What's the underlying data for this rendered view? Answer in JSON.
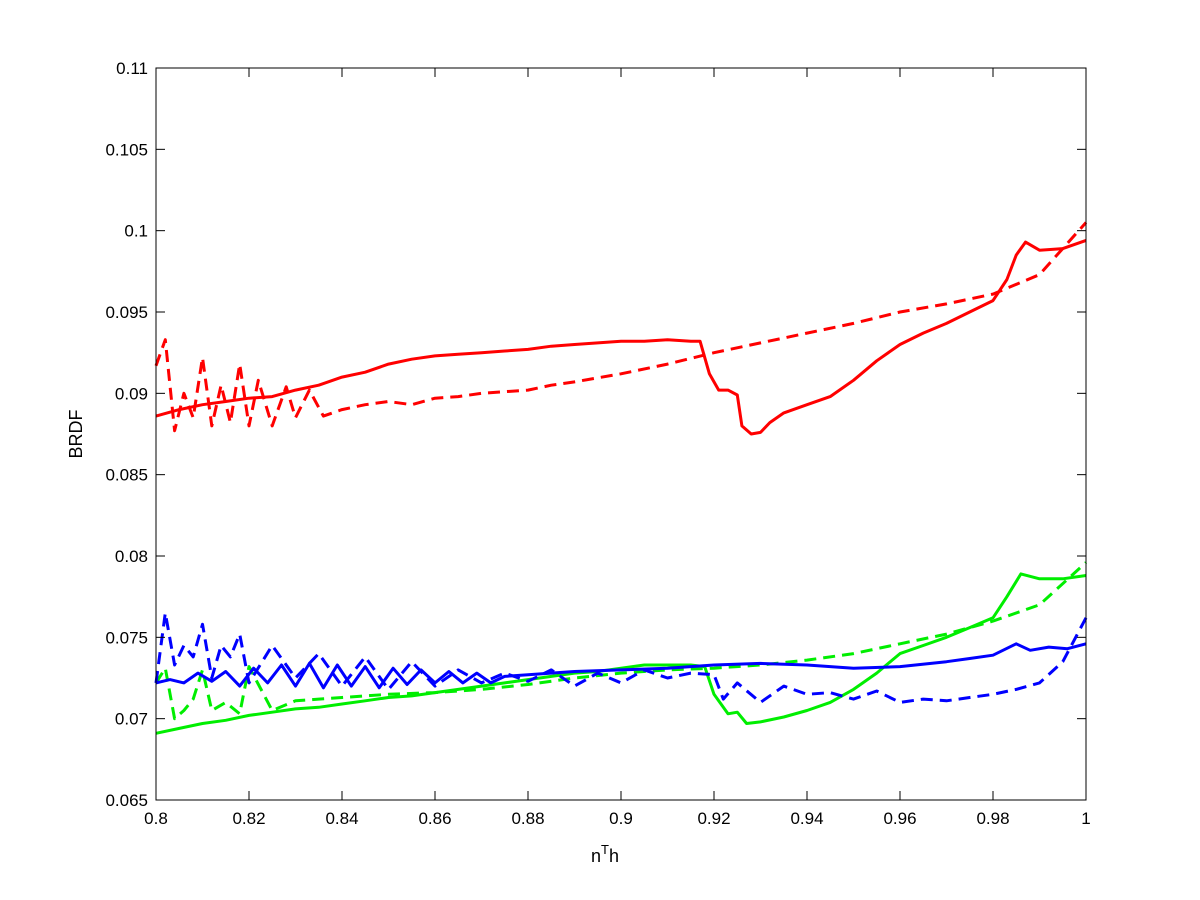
{
  "chart_data": {
    "type": "line",
    "title": "",
    "xlabel": "n",
    "xlabel_superscript": "T",
    "xlabel_suffix": "h",
    "ylabel": "BRDF",
    "xlim": [
      0.8,
      1.0
    ],
    "ylim": [
      0.065,
      0.11
    ],
    "xticks": [
      "0.8",
      "0.82",
      "0.84",
      "0.86",
      "0.88",
      "0.9",
      "0.92",
      "0.94",
      "0.96",
      "0.98",
      "1"
    ],
    "yticks": [
      "0.065",
      "0.07",
      "0.075",
      "0.08",
      "0.085",
      "0.09",
      "0.095",
      "0.1",
      "0.105",
      "0.11"
    ],
    "grid": false,
    "legend": "none",
    "series": [
      {
        "color": "#ff0000",
        "style": "solid",
        "x": [
          0.8,
          0.805,
          0.81,
          0.815,
          0.82,
          0.825,
          0.83,
          0.835,
          0.84,
          0.845,
          0.85,
          0.855,
          0.86,
          0.865,
          0.87,
          0.875,
          0.88,
          0.885,
          0.89,
          0.895,
          0.9,
          0.905,
          0.91,
          0.915,
          0.917,
          0.919,
          0.921,
          0.923,
          0.925,
          0.926,
          0.928,
          0.93,
          0.932,
          0.935,
          0.94,
          0.945,
          0.95,
          0.955,
          0.96,
          0.965,
          0.97,
          0.975,
          0.98,
          0.983,
          0.985,
          0.987,
          0.99,
          0.995,
          1.0
        ],
        "y": [
          0.0886,
          0.089,
          0.0893,
          0.0895,
          0.0897,
          0.0898,
          0.0902,
          0.0905,
          0.091,
          0.0913,
          0.0918,
          0.0921,
          0.0923,
          0.0924,
          0.0925,
          0.0926,
          0.0927,
          0.0929,
          0.093,
          0.0931,
          0.0932,
          0.0932,
          0.0933,
          0.0932,
          0.0932,
          0.0912,
          0.0902,
          0.0902,
          0.0899,
          0.088,
          0.0875,
          0.0876,
          0.0882,
          0.0888,
          0.0893,
          0.0898,
          0.0908,
          0.092,
          0.093,
          0.0937,
          0.0943,
          0.095,
          0.0957,
          0.097,
          0.0985,
          0.0993,
          0.0988,
          0.0989,
          0.0994
        ]
      },
      {
        "color": "#ff0000",
        "style": "dashed",
        "x": [
          0.8,
          0.802,
          0.804,
          0.806,
          0.808,
          0.81,
          0.812,
          0.814,
          0.816,
          0.818,
          0.82,
          0.822,
          0.825,
          0.828,
          0.83,
          0.833,
          0.836,
          0.84,
          0.845,
          0.85,
          0.855,
          0.86,
          0.865,
          0.87,
          0.875,
          0.88,
          0.885,
          0.89,
          0.9,
          0.91,
          0.92,
          0.93,
          0.94,
          0.95,
          0.96,
          0.97,
          0.98,
          0.99,
          1.0
        ],
        "y": [
          0.0917,
          0.0933,
          0.0877,
          0.09,
          0.0885,
          0.0922,
          0.088,
          0.0905,
          0.0882,
          0.0918,
          0.088,
          0.0908,
          0.088,
          0.0904,
          0.0885,
          0.0902,
          0.0886,
          0.089,
          0.0893,
          0.0895,
          0.0893,
          0.0897,
          0.0898,
          0.09,
          0.0901,
          0.0902,
          0.0905,
          0.0907,
          0.0912,
          0.0918,
          0.0925,
          0.0931,
          0.0937,
          0.0943,
          0.095,
          0.0955,
          0.0961,
          0.0973,
          0.1005
        ]
      },
      {
        "color": "#00ee00",
        "style": "solid",
        "x": [
          0.8,
          0.805,
          0.81,
          0.815,
          0.82,
          0.825,
          0.83,
          0.835,
          0.84,
          0.845,
          0.85,
          0.855,
          0.86,
          0.865,
          0.87,
          0.875,
          0.88,
          0.885,
          0.89,
          0.895,
          0.9,
          0.905,
          0.91,
          0.915,
          0.918,
          0.92,
          0.923,
          0.925,
          0.927,
          0.93,
          0.935,
          0.94,
          0.945,
          0.95,
          0.955,
          0.96,
          0.965,
          0.97,
          0.975,
          0.98,
          0.983,
          0.986,
          0.99,
          0.995,
          1.0
        ],
        "y": [
          0.0691,
          0.0694,
          0.0697,
          0.0699,
          0.0702,
          0.0704,
          0.0706,
          0.0707,
          0.0709,
          0.0711,
          0.0713,
          0.0714,
          0.0716,
          0.0718,
          0.072,
          0.0722,
          0.0724,
          0.0726,
          0.0728,
          0.0729,
          0.0731,
          0.0733,
          0.0733,
          0.0733,
          0.0732,
          0.0715,
          0.0703,
          0.0704,
          0.0697,
          0.0698,
          0.0701,
          0.0705,
          0.071,
          0.0718,
          0.0728,
          0.074,
          0.0745,
          0.075,
          0.0756,
          0.0762,
          0.0775,
          0.0789,
          0.0786,
          0.0786,
          0.0788
        ]
      },
      {
        "color": "#00ee00",
        "style": "dashed",
        "x": [
          0.8,
          0.802,
          0.804,
          0.806,
          0.808,
          0.81,
          0.812,
          0.815,
          0.818,
          0.82,
          0.825,
          0.83,
          0.835,
          0.84,
          0.845,
          0.85,
          0.86,
          0.87,
          0.88,
          0.89,
          0.9,
          0.91,
          0.92,
          0.93,
          0.94,
          0.95,
          0.96,
          0.97,
          0.98,
          0.99,
          1.0
        ],
        "y": [
          0.0722,
          0.0731,
          0.07,
          0.0705,
          0.0712,
          0.073,
          0.0705,
          0.071,
          0.0703,
          0.0732,
          0.0705,
          0.0711,
          0.0712,
          0.0713,
          0.0714,
          0.0715,
          0.0716,
          0.0718,
          0.0721,
          0.0725,
          0.0728,
          0.073,
          0.0731,
          0.0733,
          0.0736,
          0.074,
          0.0746,
          0.0752,
          0.076,
          0.077,
          0.0796
        ]
      },
      {
        "color": "#0000ff",
        "style": "solid",
        "x": [
          0.8,
          0.803,
          0.806,
          0.809,
          0.812,
          0.815,
          0.818,
          0.821,
          0.824,
          0.827,
          0.83,
          0.833,
          0.836,
          0.839,
          0.842,
          0.845,
          0.848,
          0.851,
          0.854,
          0.857,
          0.86,
          0.863,
          0.866,
          0.869,
          0.872,
          0.875,
          0.88,
          0.89,
          0.9,
          0.91,
          0.92,
          0.93,
          0.94,
          0.95,
          0.96,
          0.97,
          0.975,
          0.98,
          0.985,
          0.988,
          0.992,
          0.996,
          1.0
        ],
        "y": [
          0.0722,
          0.0724,
          0.0722,
          0.0728,
          0.0723,
          0.0729,
          0.072,
          0.0731,
          0.0722,
          0.0733,
          0.072,
          0.0734,
          0.0719,
          0.0733,
          0.072,
          0.0732,
          0.0719,
          0.0731,
          0.0721,
          0.073,
          0.0722,
          0.0729,
          0.0722,
          0.0728,
          0.0722,
          0.0726,
          0.0727,
          0.0729,
          0.073,
          0.0731,
          0.0733,
          0.0734,
          0.0733,
          0.0731,
          0.0732,
          0.0735,
          0.0737,
          0.0739,
          0.0746,
          0.0742,
          0.0744,
          0.0743,
          0.0746
        ]
      },
      {
        "color": "#0000ff",
        "style": "dashed",
        "x": [
          0.8,
          0.802,
          0.804,
          0.806,
          0.808,
          0.81,
          0.812,
          0.814,
          0.816,
          0.818,
          0.82,
          0.825,
          0.83,
          0.835,
          0.84,
          0.845,
          0.85,
          0.855,
          0.86,
          0.865,
          0.87,
          0.875,
          0.88,
          0.885,
          0.89,
          0.895,
          0.9,
          0.905,
          0.91,
          0.915,
          0.92,
          0.922,
          0.925,
          0.93,
          0.935,
          0.94,
          0.945,
          0.95,
          0.955,
          0.96,
          0.965,
          0.97,
          0.975,
          0.98,
          0.985,
          0.99,
          0.995,
          1.0
        ],
        "y": [
          0.0722,
          0.0765,
          0.0733,
          0.0745,
          0.0738,
          0.0758,
          0.0725,
          0.0745,
          0.0738,
          0.0752,
          0.0722,
          0.0745,
          0.0725,
          0.074,
          0.072,
          0.0738,
          0.0718,
          0.0735,
          0.072,
          0.073,
          0.0722,
          0.0728,
          0.0723,
          0.073,
          0.072,
          0.0728,
          0.0722,
          0.073,
          0.0725,
          0.0728,
          0.0727,
          0.0712,
          0.0722,
          0.071,
          0.072,
          0.0715,
          0.0716,
          0.0712,
          0.0717,
          0.071,
          0.0712,
          0.0711,
          0.0713,
          0.0715,
          0.0718,
          0.0722,
          0.0735,
          0.0762
        ]
      }
    ]
  }
}
